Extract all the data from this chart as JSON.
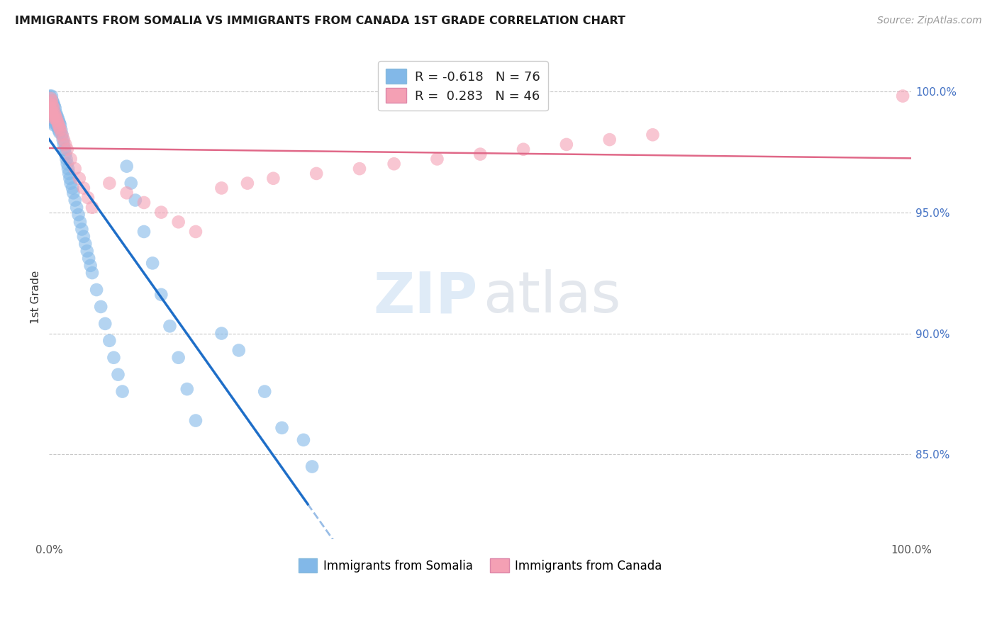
{
  "title": "IMMIGRANTS FROM SOMALIA VS IMMIGRANTS FROM CANADA 1ST GRADE CORRELATION CHART",
  "source": "Source: ZipAtlas.com",
  "ylabel": "1st Grade",
  "right_ytick_vals": [
    1.0,
    0.95,
    0.9,
    0.85
  ],
  "right_yticklabels": [
    "100.0%",
    "95.0%",
    "90.0%",
    "85.0%"
  ],
  "somalia_R": -0.618,
  "somalia_N": 76,
  "canada_R": 0.283,
  "canada_N": 46,
  "somalia_color": "#82B8E8",
  "canada_color": "#F4A0B4",
  "somalia_line_color": "#1E6EC8",
  "canada_line_color": "#E06888",
  "grid_color": "#C8C8C8",
  "background_color": "#ffffff",
  "legend_label_somalia": "Immigrants from Somalia",
  "legend_label_canada": "Immigrants from Canada",
  "xlim": [
    0.0,
    1.0
  ],
  "ylim": [
    0.815,
    1.015
  ],
  "watermark_zip_color": "#C0D8F0",
  "watermark_atlas_color": "#C8D0DC"
}
